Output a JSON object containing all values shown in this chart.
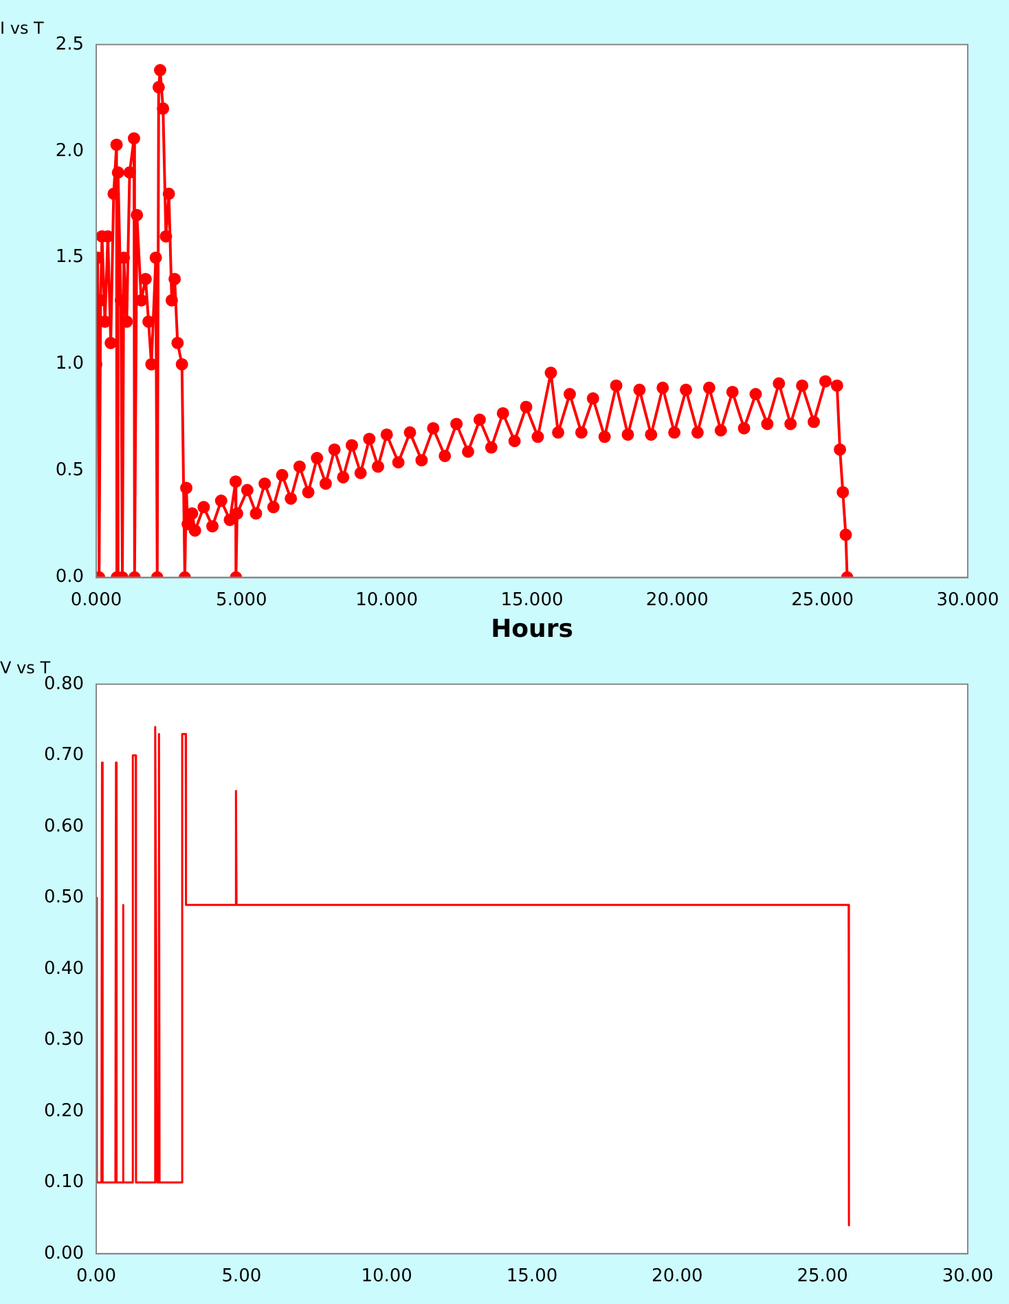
{
  "chart_data": [
    {
      "type": "line",
      "title": "I vs T",
      "xlabel": "Hours",
      "color": "#ff0000",
      "marker": "circle",
      "x": [
        0.0,
        0.05,
        0.1,
        0.15,
        0.2,
        0.3,
        0.4,
        0.5,
        0.6,
        0.7,
        0.71,
        0.75,
        0.85,
        0.9,
        0.95,
        1.05,
        1.15,
        1.3,
        1.32,
        1.4,
        1.55,
        1.7,
        1.8,
        1.9,
        2.05,
        2.1,
        2.15,
        2.2,
        2.3,
        2.4,
        2.5,
        2.6,
        2.7,
        2.8,
        2.95,
        3.05,
        3.1,
        3.15,
        3.3,
        3.4,
        3.7,
        4.0,
        4.3,
        4.6,
        4.8,
        4.81,
        4.85,
        5.2,
        5.5,
        5.8,
        6.1,
        6.4,
        6.7,
        7.0,
        7.3,
        7.6,
        7.9,
        8.2,
        8.5,
        8.8,
        9.1,
        9.4,
        9.7,
        10.0,
        10.4,
        10.8,
        11.2,
        11.6,
        12.0,
        12.4,
        12.8,
        13.2,
        13.6,
        14.0,
        14.4,
        14.8,
        15.2,
        15.65,
        15.9,
        16.3,
        16.7,
        17.1,
        17.5,
        17.9,
        18.3,
        18.7,
        19.1,
        19.5,
        19.9,
        20.3,
        20.7,
        21.1,
        21.5,
        21.9,
        22.3,
        22.7,
        23.1,
        23.5,
        23.9,
        24.3,
        24.7,
        25.1,
        25.5,
        25.6,
        25.7,
        25.8,
        25.85
      ],
      "values": [
        1.0,
        1.5,
        0.0,
        1.3,
        1.6,
        1.2,
        1.6,
        1.1,
        1.8,
        2.03,
        0.0,
        1.9,
        1.3,
        0.0,
        1.5,
        1.2,
        1.9,
        2.06,
        0.0,
        1.7,
        1.3,
        1.4,
        1.2,
        1.0,
        1.5,
        0.0,
        2.3,
        2.38,
        2.2,
        1.6,
        1.8,
        1.3,
        1.4,
        1.1,
        1.0,
        0.0,
        0.42,
        0.25,
        0.3,
        0.22,
        0.33,
        0.24,
        0.36,
        0.27,
        0.45,
        0.0,
        0.3,
        0.41,
        0.3,
        0.44,
        0.33,
        0.48,
        0.37,
        0.52,
        0.4,
        0.56,
        0.44,
        0.6,
        0.47,
        0.62,
        0.49,
        0.65,
        0.52,
        0.67,
        0.54,
        0.68,
        0.55,
        0.7,
        0.57,
        0.72,
        0.59,
        0.74,
        0.61,
        0.77,
        0.64,
        0.8,
        0.66,
        0.96,
        0.68,
        0.86,
        0.68,
        0.84,
        0.66,
        0.9,
        0.67,
        0.88,
        0.67,
        0.89,
        0.68,
        0.88,
        0.68,
        0.89,
        0.69,
        0.87,
        0.7,
        0.86,
        0.72,
        0.91,
        0.72,
        0.9,
        0.73,
        0.92,
        0.9,
        0.6,
        0.4,
        0.2,
        0.0
      ],
      "xlim": [
        0,
        30
      ],
      "xticks": [
        {
          "value": 0,
          "label": "0.000"
        },
        {
          "value": 5,
          "label": "5.000"
        },
        {
          "value": 10,
          "label": "10.000"
        },
        {
          "value": 15,
          "label": "15.000"
        },
        {
          "value": 20,
          "label": "20.000"
        },
        {
          "value": 25,
          "label": "25.000"
        },
        {
          "value": 30,
          "label": "30.000"
        }
      ],
      "ylim": [
        0,
        2.5
      ],
      "yticks": [
        {
          "value": 0,
          "label": "0.0"
        },
        0.5,
        {
          "value": 1,
          "label": "1.0"
        },
        1.5,
        {
          "value": 2,
          "label": "2.0"
        },
        2.5
      ]
    },
    {
      "type": "line",
      "title": "V vs T",
      "color": "#ff0000",
      "marker": "none",
      "x": [
        0,
        0.02,
        0.18,
        0.2,
        0.22,
        0.66,
        0.68,
        0.7,
        0.9,
        0.92,
        0.94,
        1.25,
        1.26,
        1.36,
        1.37,
        2.02,
        2.03,
        2.1,
        2.15,
        2.16,
        2.18,
        2.95,
        2.96,
        3.08,
        3.09,
        4.8,
        4.81,
        4.83,
        25.9,
        25.91
      ],
      "values": [
        0.5,
        0.1,
        0.1,
        0.69,
        0.1,
        0.1,
        0.69,
        0.1,
        0.1,
        0.49,
        0.1,
        0.1,
        0.7,
        0.7,
        0.1,
        0.1,
        0.74,
        0.1,
        0.1,
        0.73,
        0.1,
        0.1,
        0.73,
        0.73,
        0.49,
        0.49,
        0.65,
        0.49,
        0.49,
        0.04
      ],
      "xlim": [
        0,
        30
      ],
      "xticks": [
        {
          "value": 0,
          "label": "0.00"
        },
        {
          "value": 5,
          "label": "5.00"
        },
        {
          "value": 10,
          "label": "10.00"
        },
        {
          "value": 15,
          "label": "15.00"
        },
        {
          "value": 20,
          "label": "20.00"
        },
        {
          "value": 25,
          "label": "25.00"
        },
        {
          "value": 30,
          "label": "30.00"
        }
      ],
      "ylim": [
        0,
        0.8
      ],
      "yticks": [
        {
          "value": 0,
          "label": "0.00"
        },
        {
          "value": 0.1,
          "label": "0.10"
        },
        {
          "value": 0.2,
          "label": "0.20"
        },
        {
          "value": 0.3,
          "label": "0.30"
        },
        {
          "value": 0.4,
          "label": "0.40"
        },
        {
          "value": 0.5,
          "label": "0.50"
        },
        {
          "value": 0.6,
          "label": "0.60"
        },
        {
          "value": 0.7,
          "label": "0.70"
        },
        {
          "value": 0.8,
          "label": "0.80"
        }
      ]
    }
  ]
}
